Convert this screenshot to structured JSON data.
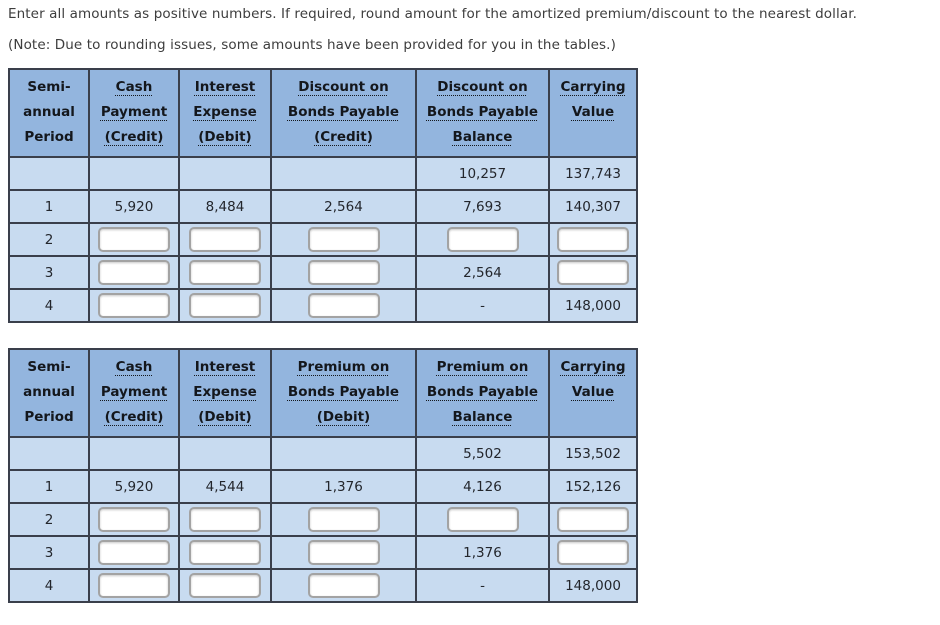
{
  "instructions": {
    "line1": "Enter all amounts as positive numbers. If required, round amount for the amortized premium/discount to the nearest dollar.",
    "line2": "(Note: Due to rounding issues, some amounts have been provided for you in the tables.)"
  },
  "colors": {
    "header_bg": "#93b5de",
    "body_bg": "#c8dbf0",
    "border": "#3a3f4b",
    "text": "#23262c",
    "instruction_text": "#3d3d3d",
    "input_border": "#a3a3a3",
    "page_bg": "#ffffff"
  },
  "tables": [
    {
      "name": "discount-amortization-table",
      "headers": [
        {
          "lines": [
            "Semi-",
            "annual",
            "Period"
          ],
          "underline": false
        },
        {
          "lines": [
            "Cash",
            "Payment",
            "(Credit)"
          ],
          "underline": true
        },
        {
          "lines": [
            "Interest",
            "Expense",
            "(Debit)"
          ],
          "underline": true
        },
        {
          "lines": [
            "Discount on",
            "Bonds Payable",
            "(Credit)"
          ],
          "underline": true
        },
        {
          "lines": [
            "Discount on",
            "Bonds Payable",
            "Balance"
          ],
          "underline": true
        },
        {
          "lines": [
            "Carrying",
            "Value"
          ],
          "underline": true
        }
      ],
      "rows": [
        {
          "cells": [
            {
              "t": ""
            },
            {
              "t": ""
            },
            {
              "t": ""
            },
            {
              "t": ""
            },
            {
              "t": "10,257"
            },
            {
              "t": "137,743"
            }
          ]
        },
        {
          "cells": [
            {
              "t": "1"
            },
            {
              "t": "5,920"
            },
            {
              "t": "8,484"
            },
            {
              "t": "2,564"
            },
            {
              "t": "7,693"
            },
            {
              "t": "140,307"
            }
          ]
        },
        {
          "cells": [
            {
              "t": "2"
            },
            {
              "input": true,
              "value": ""
            },
            {
              "input": true,
              "value": ""
            },
            {
              "input": true,
              "value": ""
            },
            {
              "input": true,
              "value": ""
            },
            {
              "input": true,
              "value": ""
            }
          ]
        },
        {
          "cells": [
            {
              "t": "3"
            },
            {
              "input": true,
              "value": ""
            },
            {
              "input": true,
              "value": ""
            },
            {
              "input": true,
              "value": ""
            },
            {
              "t": "2,564"
            },
            {
              "input": true,
              "value": ""
            }
          ]
        },
        {
          "cells": [
            {
              "t": "4"
            },
            {
              "input": true,
              "value": ""
            },
            {
              "input": true,
              "value": ""
            },
            {
              "input": true,
              "value": ""
            },
            {
              "t": "-"
            },
            {
              "t": "148,000"
            }
          ]
        }
      ]
    },
    {
      "name": "premium-amortization-table",
      "headers": [
        {
          "lines": [
            "Semi-",
            "annual",
            "Period"
          ],
          "underline": false
        },
        {
          "lines": [
            "Cash",
            "Payment",
            "(Credit)"
          ],
          "underline": true
        },
        {
          "lines": [
            "Interest",
            "Expense",
            "(Debit)"
          ],
          "underline": true
        },
        {
          "lines": [
            "Premium on",
            "Bonds Payable",
            "(Debit)"
          ],
          "underline": true
        },
        {
          "lines": [
            "Premium on",
            "Bonds Payable",
            "Balance"
          ],
          "underline": true
        },
        {
          "lines": [
            "Carrying",
            "Value"
          ],
          "underline": true
        }
      ],
      "rows": [
        {
          "cells": [
            {
              "t": ""
            },
            {
              "t": ""
            },
            {
              "t": ""
            },
            {
              "t": ""
            },
            {
              "t": "5,502"
            },
            {
              "t": "153,502"
            }
          ]
        },
        {
          "cells": [
            {
              "t": "1"
            },
            {
              "t": "5,920"
            },
            {
              "t": "4,544"
            },
            {
              "t": "1,376"
            },
            {
              "t": "4,126"
            },
            {
              "t": "152,126"
            }
          ]
        },
        {
          "cells": [
            {
              "t": "2"
            },
            {
              "input": true,
              "value": ""
            },
            {
              "input": true,
              "value": ""
            },
            {
              "input": true,
              "value": ""
            },
            {
              "input": true,
              "value": ""
            },
            {
              "input": true,
              "value": ""
            }
          ]
        },
        {
          "cells": [
            {
              "t": "3"
            },
            {
              "input": true,
              "value": ""
            },
            {
              "input": true,
              "value": ""
            },
            {
              "input": true,
              "value": ""
            },
            {
              "t": "1,376"
            },
            {
              "input": true,
              "value": ""
            }
          ]
        },
        {
          "cells": [
            {
              "t": "4"
            },
            {
              "input": true,
              "value": ""
            },
            {
              "input": true,
              "value": ""
            },
            {
              "input": true,
              "value": ""
            },
            {
              "t": "-"
            },
            {
              "t": "148,000"
            }
          ]
        }
      ]
    }
  ]
}
